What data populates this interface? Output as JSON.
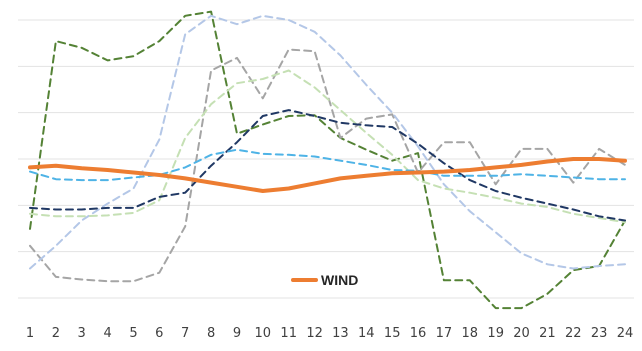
{
  "chart_data": {
    "type": "line",
    "title": "",
    "xlabel": "",
    "ylabel": "",
    "categories": [
      "1",
      "2",
      "3",
      "4",
      "5",
      "6",
      "7",
      "8",
      "9",
      "10",
      "11",
      "12",
      "13",
      "14",
      "15",
      "16",
      "17",
      "18",
      "19",
      "20",
      "21",
      "22",
      "23",
      "24"
    ],
    "ylim": [
      0,
      330
    ],
    "grid": "horizontal",
    "y_axis_labels_shown": false,
    "legend": {
      "position": "bottom-center",
      "entries": [
        {
          "label": "WIND",
          "color": "#ED7D31"
        }
      ]
    },
    "series": [
      {
        "name": "WIND",
        "color": "#ED7D31",
        "style": "solid",
        "values": [
          155,
          157,
          154,
          152,
          149,
          146,
          142,
          137,
          132,
          127,
          130,
          136,
          142,
          145,
          148,
          149,
          150,
          152,
          155,
          158,
          162,
          165,
          165,
          163
        ]
      },
      {
        "color": "#548235",
        "style": "dashed",
        "values": [
          82,
          305,
          297,
          282,
          287,
          305,
          335,
          340,
          195,
          206,
          216,
          217,
          190,
          176,
          163,
          172,
          21,
          21,
          -12,
          -12,
          5,
          33,
          38,
          92
        ]
      },
      {
        "color": "#A5A5A5",
        "style": "dashed",
        "values": [
          62,
          25,
          22,
          20,
          20,
          30,
          85,
          270,
          285,
          237,
          295,
          293,
          190,
          213,
          218,
          149,
          185,
          185,
          135,
          177,
          177,
          137,
          177,
          158
        ]
      },
      {
        "color": "#B4C7E7",
        "style": "dashed",
        "values": [
          35,
          62,
          92,
          112,
          130,
          188,
          313,
          335,
          325,
          335,
          330,
          316,
          288,
          253,
          220,
          180,
          135,
          103,
          78,
          53,
          40,
          35,
          38,
          40
        ]
      },
      {
        "color": "#C5E0B4",
        "style": "dashed",
        "values": [
          100,
          97,
          97,
          98,
          101,
          116,
          190,
          230,
          255,
          260,
          270,
          250,
          223,
          196,
          170,
          140,
          130,
          125,
          119,
          112,
          108,
          100,
          95,
          90
        ]
      },
      {
        "color": "#203864",
        "style": "dashed",
        "values": [
          107,
          105,
          105,
          107,
          107,
          120,
          125,
          157,
          185,
          216,
          223,
          216,
          208,
          205,
          203,
          183,
          160,
          140,
          127,
          119,
          112,
          105,
          97,
          92
        ]
      },
      {
        "color": "#4EB3E6",
        "style": "dashed",
        "values": [
          150,
          141,
          140,
          140,
          143,
          146,
          155,
          170,
          176,
          171,
          170,
          168,
          163,
          158,
          152,
          151,
          145,
          145,
          145,
          147,
          145,
          143,
          141,
          141
        ]
      }
    ]
  }
}
